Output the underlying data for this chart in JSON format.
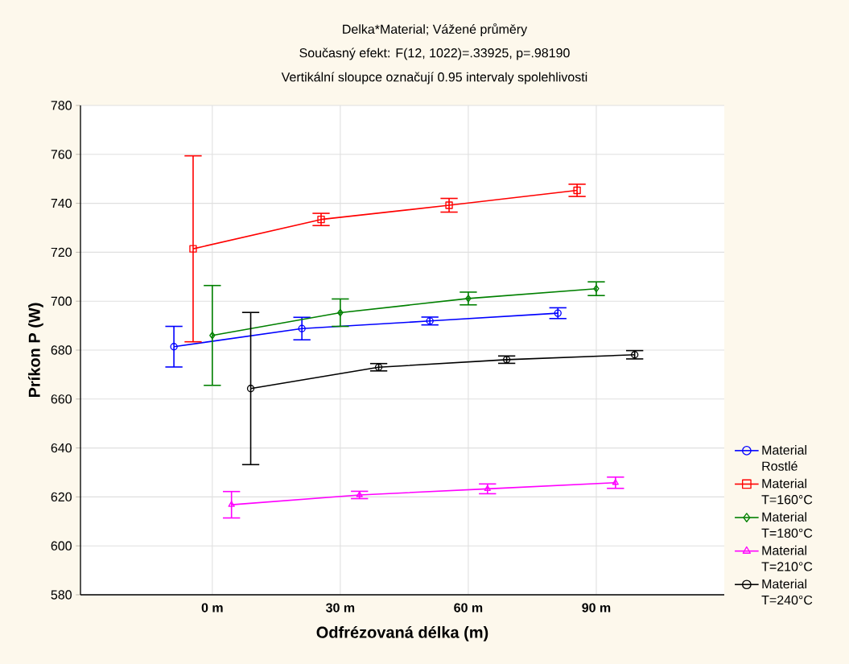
{
  "chart_data": {
    "type": "line",
    "title": "Delka*Material; Vážené průměry",
    "subtitle": "Současný efekt: F(12, 1022)=.33925, p=.98190",
    "annotations": [
      "Vertikální sloupce označují 0.95 intervaly spolehlivosti"
    ],
    "xlabel": "Odfrézovaná délka (m)",
    "ylabel": "Príkon P (W)",
    "categories": [
      "0 m",
      "30 m",
      "60 m",
      "90 m"
    ],
    "series": [
      {
        "name": "Material Rostlé",
        "color": "#0000ff",
        "marker": "circle",
        "values": [
          681.4,
          688.8,
          691.9,
          695.1
        ],
        "errors": [
          8.3,
          4.6,
          1.6,
          2.2
        ]
      },
      {
        "name": "Material T=160°C",
        "color": "#ff0000",
        "marker": "square",
        "values": [
          721.4,
          733.4,
          739.2,
          745.3
        ],
        "errors": [
          38,
          2.5,
          2.8,
          2.5
        ]
      },
      {
        "name": "Material T=180°C",
        "color": "#008000",
        "marker": "diamond",
        "values": [
          686.0,
          695.3,
          701.1,
          705.1
        ],
        "errors": [
          20.4,
          5.6,
          2.6,
          2.8
        ]
      },
      {
        "name": "Material T=210°C",
        "color": "#ff00ff",
        "marker": "triangle",
        "values": [
          616.8,
          620.8,
          623.3,
          625.8
        ],
        "errors": [
          5.4,
          1.5,
          2.0,
          2.3
        ]
      },
      {
        "name": "Material T=240°C",
        "color": "#000000",
        "marker": "circle",
        "values": [
          664.3,
          673.0,
          676.1,
          678.1
        ],
        "errors": [
          31.1,
          1.5,
          1.5,
          1.7
        ]
      }
    ],
    "ylim": [
      580,
      780
    ],
    "yticks": [
      580,
      600,
      620,
      640,
      660,
      680,
      700,
      720,
      740,
      760,
      780
    ],
    "grid": true,
    "legend": "bottom right"
  }
}
